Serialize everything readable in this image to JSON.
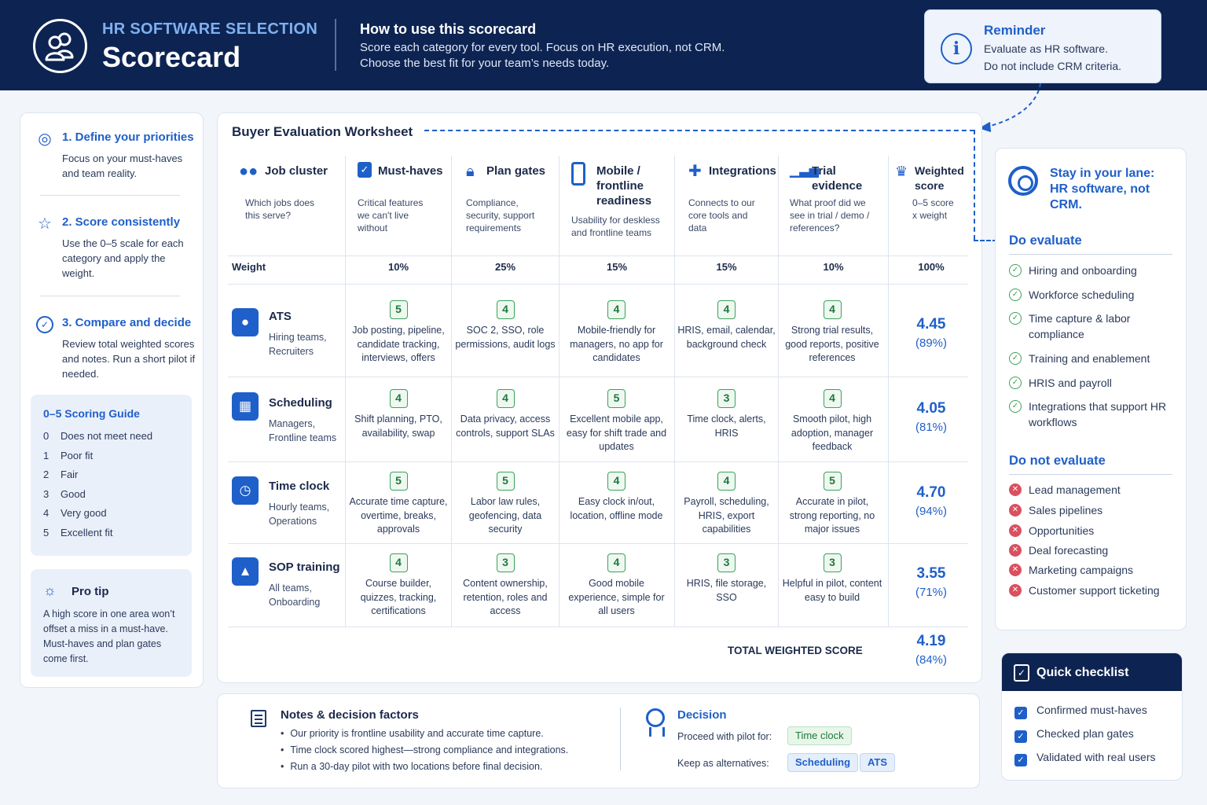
{
  "header": {
    "kicker": "HR SOFTWARE SELECTION",
    "title": "Scorecard",
    "howto_title": "How to use this scorecard",
    "howto_line1": "Score each category for every tool. Focus on HR execution, not CRM.",
    "howto_line2": "Choose the best fit for your team’s needs today."
  },
  "reminder": {
    "title": "Reminder",
    "line1": "Evaluate as HR software.",
    "line2": "Do not include CRM criteria."
  },
  "steps": [
    {
      "title": "1. Define your priorities",
      "desc": "Focus on your must-haves and team reality."
    },
    {
      "title": "2. Score consistently",
      "desc": "Use the 0–5 scale for each category and apply the weight."
    },
    {
      "title": "3. Compare and decide",
      "desc": "Review total weighted scores and notes. Run a short pilot if needed."
    }
  ],
  "guide": {
    "title": "0–5 Scoring Guide",
    "rows": [
      {
        "n": "0",
        "label": "Does not meet need"
      },
      {
        "n": "1",
        "label": "Poor fit"
      },
      {
        "n": "2",
        "label": "Fair"
      },
      {
        "n": "3",
        "label": "Good"
      },
      {
        "n": "4",
        "label": "Very good"
      },
      {
        "n": "5",
        "label": "Excellent fit"
      }
    ]
  },
  "tip": {
    "title": "Pro tip",
    "desc": "A high score in one area won’t offset a miss in a must-have. Must-haves and plan gates come first."
  },
  "worksheet": {
    "title": "Buyer Evaluation Worksheet",
    "columns": [
      {
        "title": "Job cluster",
        "desc": "Which jobs does this serve?"
      },
      {
        "title": "Must-haves",
        "desc": "Critical features we can't live without"
      },
      {
        "title": "Plan gates",
        "desc": "Compliance, security, support requirements"
      },
      {
        "title": "Mobile / frontline readiness",
        "desc": "Usability for deskless and frontline teams"
      },
      {
        "title": "Integrations",
        "desc": "Connects to our core tools and data"
      },
      {
        "title": "Trial evidence",
        "desc": "What proof did we see in trial / demo / references?"
      },
      {
        "title": "Weighted score",
        "desc": "0–5 score x weight"
      }
    ],
    "weight_label": "Weight",
    "weights": [
      "10%",
      "25%",
      "15%",
      "15%",
      "10%",
      "100%"
    ],
    "rows": [
      {
        "name": "ATS",
        "who": "Hiring teams, Recruiters",
        "cells": [
          {
            "score": "5",
            "note": "Job posting, pipeline, candidate tracking, interviews, offers"
          },
          {
            "score": "4",
            "note": "SOC 2, SSO, role permissions, audit logs"
          },
          {
            "score": "4",
            "note": "Mobile-friendly for managers, no app for candidates"
          },
          {
            "score": "4",
            "note": "HRIS, email, calendar, background check"
          },
          {
            "score": "4",
            "note": "Strong trial results, good reports, positive references"
          }
        ],
        "weighted": "4.45",
        "pct": "(89%)"
      },
      {
        "name": "Scheduling",
        "who": "Managers, Frontline teams",
        "cells": [
          {
            "score": "4",
            "note": "Shift planning, PTO, availability, swap"
          },
          {
            "score": "4",
            "note": "Data privacy, access controls, support SLAs"
          },
          {
            "score": "5",
            "note": "Excellent mobile app, easy for shift trade and updates"
          },
          {
            "score": "3",
            "note": "Time clock, alerts, HRIS"
          },
          {
            "score": "4",
            "note": "Smooth pilot, high adoption, manager feedback"
          }
        ],
        "weighted": "4.05",
        "pct": "(81%)"
      },
      {
        "name": "Time clock",
        "who": "Hourly teams, Operations",
        "cells": [
          {
            "score": "5",
            "note": "Accurate time capture, overtime, breaks, approvals"
          },
          {
            "score": "5",
            "note": "Labor law rules, geofencing, data security"
          },
          {
            "score": "4",
            "note": "Easy clock in/out, location, offline mode"
          },
          {
            "score": "4",
            "note": "Payroll, scheduling, HRIS, export capabilities"
          },
          {
            "score": "5",
            "note": "Accurate in pilot, strong reporting, no major issues"
          }
        ],
        "weighted": "4.70",
        "pct": "(94%)"
      },
      {
        "name": "SOP training",
        "who": "All teams, Onboarding",
        "cells": [
          {
            "score": "4",
            "note": "Course builder, quizzes, tracking, certifications"
          },
          {
            "score": "3",
            "note": "Content ownership, retention, roles and access"
          },
          {
            "score": "4",
            "note": "Good mobile experience, simple for all users"
          },
          {
            "score": "3",
            "note": "HRIS, file storage, SSO"
          },
          {
            "score": "3",
            "note": "Helpful in pilot, content easy to build"
          }
        ],
        "weighted": "3.55",
        "pct": "(71%)"
      }
    ],
    "total_label": "TOTAL WEIGHTED SCORE",
    "total_value": "4.19",
    "total_pct": "(84%)"
  },
  "lane": {
    "title": "Stay in your lane: HR software, not CRM.",
    "do_title": "Do evaluate",
    "do_items": [
      "Hiring and onboarding",
      "Workforce scheduling",
      "Time capture & labor compliance",
      "Training and enablement",
      "HRIS and payroll",
      "Integrations that support HR workflows"
    ],
    "dont_title": "Do not evaluate",
    "dont_items": [
      "Lead management",
      "Sales pipelines",
      "Opportunities",
      "Deal forecasting",
      "Marketing campaigns",
      "Customer support ticketing"
    ]
  },
  "checklist": {
    "title": "Quick checklist",
    "items": [
      "Confirmed must-haves",
      "Checked plan gates",
      "Validated with real users"
    ]
  },
  "notes": {
    "title": "Notes & decision factors",
    "items": [
      "Our priority is frontline usability and accurate time capture.",
      "Time clock scored highest—strong compliance and integrations.",
      "Run a 30-day pilot with two locations before final decision."
    ]
  },
  "decision": {
    "title": "Decision",
    "proceed_label": "Proceed with pilot for:",
    "proceed_value": "Time clock",
    "alt_label": "Keep as alternatives:",
    "alt_values": [
      "Scheduling",
      "ATS"
    ]
  },
  "colors": {
    "navy": "#0d2452",
    "accent": "#1f5fc9",
    "good": "#3aa35a",
    "bad": "#d9505f"
  }
}
